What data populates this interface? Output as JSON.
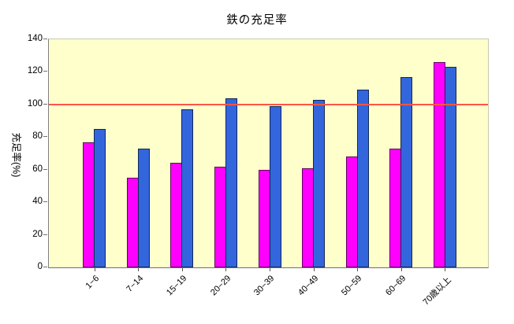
{
  "chart_data": {
    "type": "bar",
    "title": "鉄の充足率",
    "ylabel": "充足率(%)",
    "xlabel": "",
    "categories": [
      "1−6",
      "7−14",
      "15−19",
      "20−29",
      "30−39",
      "40−49",
      "50−59",
      "60−69",
      "70歳以上"
    ],
    "series": [
      {
        "name": "series-magenta",
        "color": "#FF00FF",
        "values": [
          77,
          55,
          64,
          62,
          60,
          61,
          68,
          73,
          126
        ]
      },
      {
        "name": "series-blue",
        "color": "#3366DD",
        "values": [
          85,
          73,
          97,
          104,
          99,
          103,
          109,
          117,
          123
        ]
      }
    ],
    "reference_line": {
      "value": 100,
      "color": "#FF5544"
    },
    "ylim": [
      0,
      140
    ],
    "yticks": [
      0,
      20,
      40,
      60,
      80,
      100,
      120,
      140
    ],
    "grid": false,
    "legend": "none",
    "plot_background": "#FFFFCC"
  }
}
